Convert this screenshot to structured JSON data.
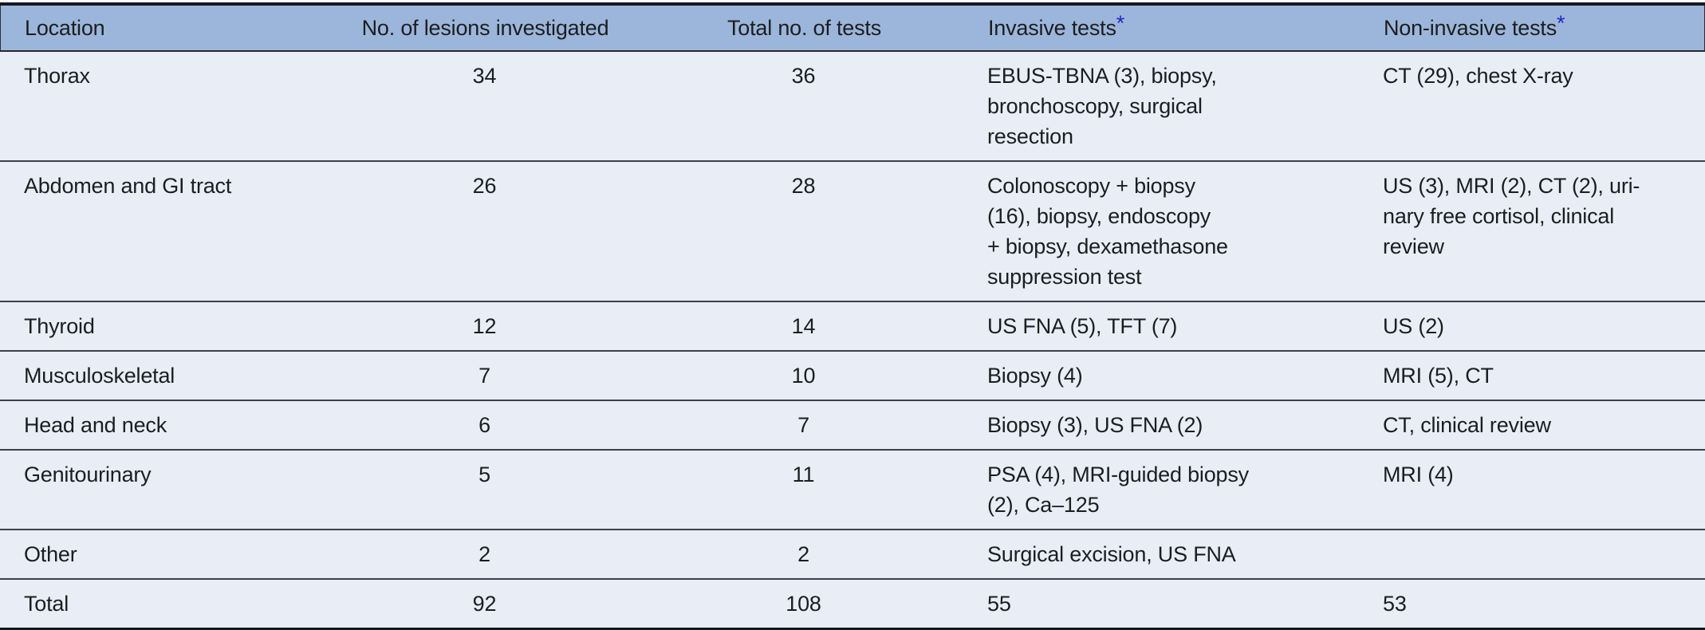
{
  "table": {
    "columns": [
      {
        "label": "Location"
      },
      {
        "label": "No. of lesions investigated"
      },
      {
        "label": "Total no. of tests"
      },
      {
        "label": "Invasive tests",
        "footnote_marker": "*"
      },
      {
        "label": "Non-invasive tests",
        "footnote_marker": "*"
      }
    ],
    "rows": [
      {
        "location": "Thorax",
        "lesions_investigated": "34",
        "total_tests": "36",
        "invasive_tests": "EBUS-TBNA (3), biopsy,\nbronchoscopy, surgical\nresection",
        "non_invasive_tests": "CT (29), chest X-ray"
      },
      {
        "location": "Abdomen and GI tract",
        "lesions_investigated": "26",
        "total_tests": "28",
        "invasive_tests": "Colonoscopy + biopsy\n(16), biopsy, endoscopy\n+ biopsy, dexamethasone\nsuppression test",
        "non_invasive_tests": "US (3), MRI (2), CT (2), uri-\nnary free cortisol, clinical\nreview"
      },
      {
        "location": "Thyroid",
        "lesions_investigated": "12",
        "total_tests": "14",
        "invasive_tests": "US FNA (5), TFT (7)",
        "non_invasive_tests": "US (2)"
      },
      {
        "location": "Musculoskeletal",
        "lesions_investigated": "7",
        "total_tests": "10",
        "invasive_tests": "Biopsy (4)",
        "non_invasive_tests": "MRI (5), CT"
      },
      {
        "location": "Head and neck",
        "lesions_investigated": "6",
        "total_tests": "7",
        "invasive_tests": "Biopsy (3), US FNA (2)",
        "non_invasive_tests": "CT, clinical review"
      },
      {
        "location": "Genitourinary",
        "lesions_investigated": "5",
        "total_tests": "11",
        "invasive_tests": "PSA (4), MRI-guided biopsy\n(2), Ca–125",
        "non_invasive_tests": "MRI (4)"
      },
      {
        "location": "Other",
        "lesions_investigated": "2",
        "total_tests": "2",
        "invasive_tests": "Surgical excision, US FNA",
        "non_invasive_tests": ""
      },
      {
        "location": "Total",
        "lesions_investigated": "92",
        "total_tests": "108",
        "invasive_tests": "55",
        "non_invasive_tests": "53"
      }
    ],
    "colors": {
      "header_background": "#9bb6da",
      "row_background": "#e8edf6",
      "divider": "#3d4147",
      "outer_border": "#15181c",
      "text": "#1c1d1f",
      "footnote_marker": "#2323d8"
    }
  }
}
